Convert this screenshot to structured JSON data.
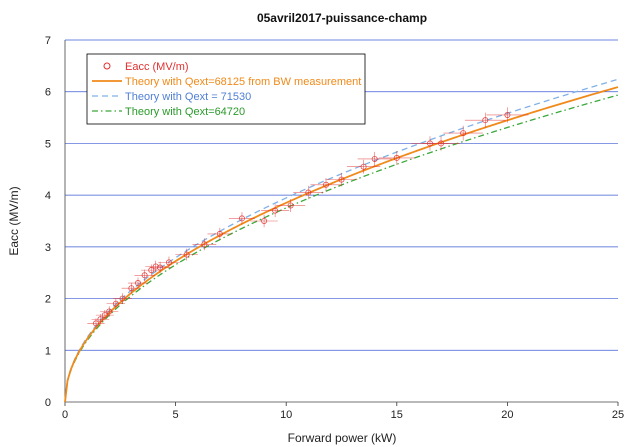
{
  "chart_data": {
    "type": "scatter",
    "title": "05avril2017-puissance-champ",
    "xlabel": "Forward power (kW)",
    "ylabel": "Eacc (MV/m)",
    "xlim": [
      0,
      25
    ],
    "ylim": [
      0,
      7
    ],
    "xticks": [
      0,
      5,
      10,
      15,
      20,
      25
    ],
    "yticks": [
      0,
      1,
      2,
      3,
      4,
      5,
      6,
      7
    ],
    "grid": "horizontal",
    "legend_position": "top-left",
    "measurements": {
      "name": "Eacc (MV/m)",
      "color": "#e03030",
      "points": [
        {
          "x": 1.4,
          "y": 1.52
        },
        {
          "x": 1.6,
          "y": 1.6
        },
        {
          "x": 1.8,
          "y": 1.68
        },
        {
          "x": 2.0,
          "y": 1.75
        },
        {
          "x": 2.3,
          "y": 1.9
        },
        {
          "x": 2.6,
          "y": 2.0
        },
        {
          "x": 3.0,
          "y": 2.2
        },
        {
          "x": 3.3,
          "y": 2.3
        },
        {
          "x": 3.6,
          "y": 2.45
        },
        {
          "x": 3.9,
          "y": 2.55
        },
        {
          "x": 4.1,
          "y": 2.62
        },
        {
          "x": 4.3,
          "y": 2.6
        },
        {
          "x": 4.7,
          "y": 2.7
        },
        {
          "x": 5.5,
          "y": 2.85
        },
        {
          "x": 6.3,
          "y": 3.05
        },
        {
          "x": 7.0,
          "y": 3.25
        },
        {
          "x": 8.0,
          "y": 3.55
        },
        {
          "x": 9.0,
          "y": 3.5
        },
        {
          "x": 9.5,
          "y": 3.7
        },
        {
          "x": 10.2,
          "y": 3.8
        },
        {
          "x": 11.0,
          "y": 4.05
        },
        {
          "x": 11.8,
          "y": 4.2
        },
        {
          "x": 12.5,
          "y": 4.3
        },
        {
          "x": 13.5,
          "y": 4.55
        },
        {
          "x": 14.0,
          "y": 4.7
        },
        {
          "x": 15.0,
          "y": 4.72
        },
        {
          "x": 16.5,
          "y": 5.0
        },
        {
          "x": 17.0,
          "y": 5.0
        },
        {
          "x": 18.0,
          "y": 5.2
        },
        {
          "x": 19.0,
          "y": 5.45
        },
        {
          "x": 20.0,
          "y": 5.55
        }
      ]
    },
    "series": [
      {
        "name": "Theory with Qext=68125 from BW measurement",
        "color": "#f08a1a",
        "dash": "solid",
        "coef": 1.218
      },
      {
        "name": "Theory with Qext = 71530",
        "color": "#7fb0e6",
        "dash": "dash",
        "coef": 1.248
      },
      {
        "name": "Theory with Qext=64720",
        "color": "#3aa83a",
        "dash": "dashdot",
        "coef": 1.187
      }
    ]
  }
}
